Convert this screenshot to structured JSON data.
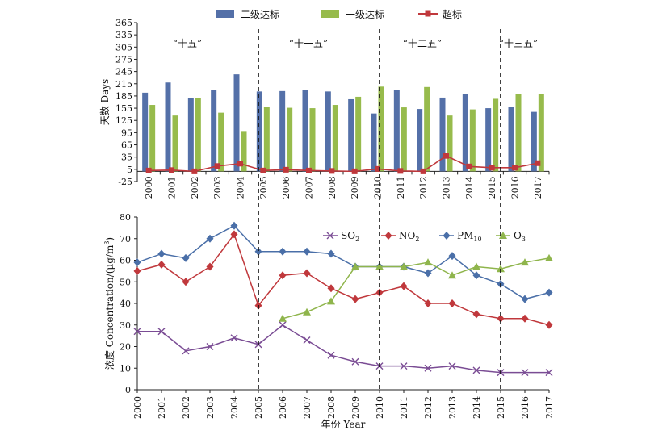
{
  "chart_data": [
    {
      "type": "bar",
      "categories": [
        "2000",
        "2001",
        "2002",
        "2003",
        "2004",
        "2005",
        "2006",
        "2007",
        "2008",
        "2009",
        "2010",
        "2011",
        "2012",
        "2013",
        "2014",
        "2015",
        "2016",
        "2017"
      ],
      "series": [
        {
          "name": "二级达标",
          "type": "bar",
          "color": "#5470a8",
          "values": [
            193,
            218,
            180,
            199,
            238,
            196,
            197,
            199,
            196,
            177,
            142,
            199,
            153,
            181,
            189,
            155,
            158,
            146
          ]
        },
        {
          "name": "一级达标",
          "type": "bar",
          "color": "#97bb4c",
          "values": [
            163,
            137,
            180,
            144,
            99,
            158,
            156,
            155,
            163,
            183,
            208,
            157,
            207,
            137,
            152,
            178,
            189,
            189
          ]
        },
        {
          "name": "超标",
          "type": "line",
          "color": "#c0383c",
          "values": [
            2,
            3,
            0,
            13,
            19,
            2,
            4,
            2,
            1,
            0,
            6,
            1,
            0,
            38,
            12,
            9,
            9,
            20
          ]
        }
      ],
      "ylabel": "天数 Days",
      "ylim": [
        -25,
        365
      ],
      "yticks": [
        -25,
        5,
        35,
        65,
        95,
        125,
        155,
        185,
        215,
        245,
        275,
        305,
        335,
        365
      ],
      "grid": false,
      "legend": "top",
      "period_labels": [
        "“十五”",
        "“十一五”",
        "“十二五”",
        "“十三五”"
      ]
    },
    {
      "type": "line",
      "x": [
        "2000",
        "2001",
        "2002",
        "2003",
        "2004",
        "2005",
        "2006",
        "2007",
        "2008",
        "2009",
        "2010",
        "2011",
        "2012",
        "2013",
        "2014",
        "2015",
        "2016",
        "2017"
      ],
      "series": [
        {
          "name": "SO2",
          "name_main": "SO",
          "name_sub": "2",
          "marker": "x",
          "color": "#7a4c94",
          "values": [
            27,
            27,
            18,
            20,
            24,
            21,
            30,
            23,
            16,
            13,
            11,
            11,
            10,
            11,
            9,
            8,
            8,
            8
          ]
        },
        {
          "name": "NO2",
          "name_main": "NO",
          "name_sub": "2",
          "marker": "diamond",
          "color": "#c0383c",
          "values": [
            55,
            58,
            50,
            57,
            72,
            39,
            53,
            54,
            47,
            42,
            45,
            48,
            40,
            40,
            35,
            33,
            33,
            30
          ]
        },
        {
          "name": "PM10",
          "name_main": "PM",
          "name_sub": "10",
          "marker": "diamond",
          "color": "#4a6fa8",
          "values": [
            59,
            63,
            61,
            70,
            76,
            64,
            64,
            64,
            63,
            57,
            57,
            57,
            54,
            62,
            53,
            49,
            42,
            45
          ]
        },
        {
          "name": "O3",
          "name_main": "O",
          "name_sub": "3",
          "marker": "triangle",
          "color": "#8fb54c",
          "values": [
            null,
            null,
            null,
            null,
            null,
            null,
            33,
            36,
            41,
            57,
            57,
            57,
            59,
            53,
            57,
            56,
            59,
            61
          ]
        }
      ],
      "xlabel": "年份 Year",
      "ylabel_main": "浓度 Concentration/(μg/m",
      "ylabel_sup": "3",
      "ylabel_end": ")",
      "ylim": [
        0,
        80
      ],
      "yticks": [
        0,
        10,
        20,
        30,
        40,
        50,
        60,
        70,
        80
      ],
      "grid": false,
      "legend": "top-right"
    }
  ]
}
